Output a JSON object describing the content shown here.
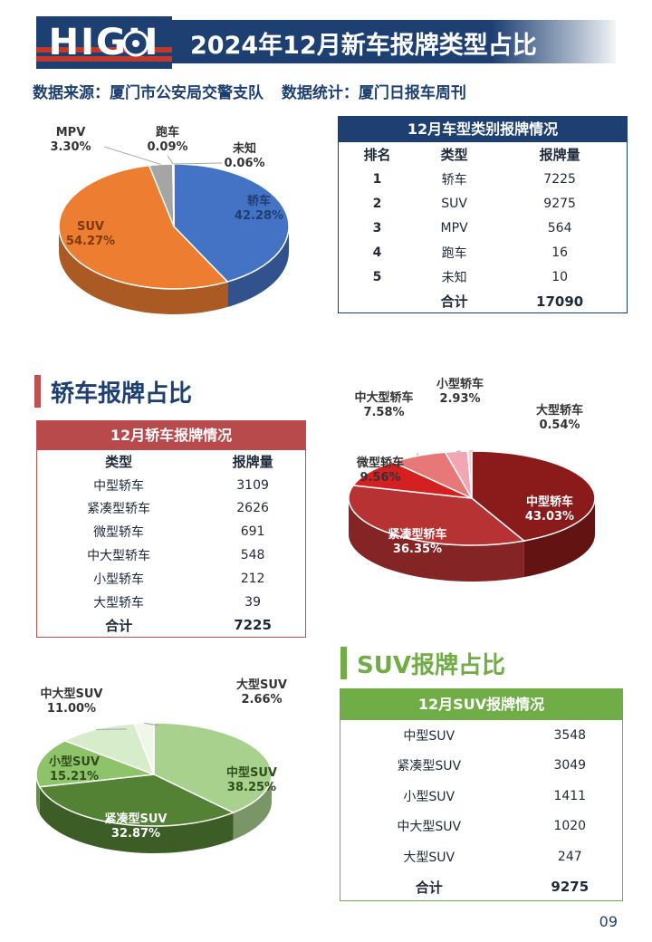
{
  "header": {
    "logo_text": "HIGH",
    "title": "2024年12月新车报牌类型占比",
    "source_left": "数据来源：厦门市公安局交警支队",
    "source_right": "数据统计：厦门日报车周刊"
  },
  "colors": {
    "navy": "#1d3f72",
    "red": "#c0504d",
    "green": "#70ad47"
  },
  "type_table": {
    "title": "12月车型类别报牌情况",
    "headers": [
      "排名",
      "类型",
      "报牌量"
    ],
    "rows": [
      [
        "1",
        "轿车",
        "7225"
      ],
      [
        "2",
        "SUV",
        "9275"
      ],
      [
        "3",
        "MPV",
        "564"
      ],
      [
        "4",
        "跑车",
        "16"
      ],
      [
        "5",
        "未知",
        "10"
      ]
    ],
    "total_label": "合计",
    "total_value": "17090"
  },
  "sedan_section_title": "轿车报牌占比",
  "sedan_table": {
    "title": "12月轿车报牌情况",
    "headers": [
      "类型",
      "报牌量"
    ],
    "rows": [
      [
        "中型轿车",
        "3109"
      ],
      [
        "紧凑型轿车",
        "2626"
      ],
      [
        "微型轿车",
        "691"
      ],
      [
        "中大型轿车",
        "548"
      ],
      [
        "小型轿车",
        "212"
      ],
      [
        "大型轿车",
        "39"
      ]
    ],
    "total_label": "合计",
    "total_value": "7225"
  },
  "suv_section_title": "SUV报牌占比",
  "suv_table": {
    "title": "12月SUV报牌情况",
    "rows": [
      [
        "中型SUV",
        "3548"
      ],
      [
        "紧凑型SUV",
        "3049"
      ],
      [
        "小型SUV",
        "1411"
      ],
      [
        "中大型SUV",
        "1020"
      ],
      [
        "大型SUV",
        "247"
      ]
    ],
    "total_label": "合计",
    "total_value": "9275"
  },
  "page_number": "09",
  "chart_data": [
    {
      "type": "pie",
      "title": "",
      "slices": [
        {
          "label": "轿车",
          "pct_label": "42.28%",
          "value": 42.28,
          "color": "#4472c4"
        },
        {
          "label": "SUV",
          "pct_label": "54.27%",
          "value": 54.27,
          "color": "#ed7d31"
        },
        {
          "label": "MPV",
          "pct_label": "3.30%",
          "value": 3.3,
          "color": "#a5a5a5"
        },
        {
          "label": "跑车",
          "pct_label": "0.09%",
          "value": 0.09,
          "color": "#ffc000"
        },
        {
          "label": "未知",
          "pct_label": "0.06%",
          "value": 0.06,
          "color": "#5b9bd5"
        }
      ]
    },
    {
      "type": "pie",
      "title": "",
      "slices": [
        {
          "label": "中型轿车",
          "pct_label": "43.03%",
          "value": 43.03,
          "color": "#8b1a1a"
        },
        {
          "label": "紧凑型轿车",
          "pct_label": "36.35%",
          "value": 36.35,
          "color": "#b73232"
        },
        {
          "label": "微型轿车",
          "pct_label": "9.56%",
          "value": 9.56,
          "color": "#d42020"
        },
        {
          "label": "中大型轿车",
          "pct_label": "7.58%",
          "value": 7.58,
          "color": "#e87878"
        },
        {
          "label": "小型轿车",
          "pct_label": "2.93%",
          "value": 2.93,
          "color": "#f2a6b4"
        },
        {
          "label": "大型轿车",
          "pct_label": "0.54%",
          "value": 0.54,
          "color": "#f7d3d9"
        }
      ]
    },
    {
      "type": "pie",
      "title": "",
      "slices": [
        {
          "label": "中型SUV",
          "pct_label": "38.25%",
          "value": 38.25,
          "color": "#a9d18e"
        },
        {
          "label": "紧凑型SUV",
          "pct_label": "32.87%",
          "value": 32.87,
          "color": "#548235"
        },
        {
          "label": "小型SUV",
          "pct_label": "15.21%",
          "value": 15.21,
          "color": "#8fc36a"
        },
        {
          "label": "中大型SUV",
          "pct_label": "11.00%",
          "value": 11.0,
          "color": "#d7eccb"
        },
        {
          "label": "大型SUV",
          "pct_label": "2.66%",
          "value": 2.66,
          "color": "#eef7e8"
        }
      ]
    }
  ]
}
